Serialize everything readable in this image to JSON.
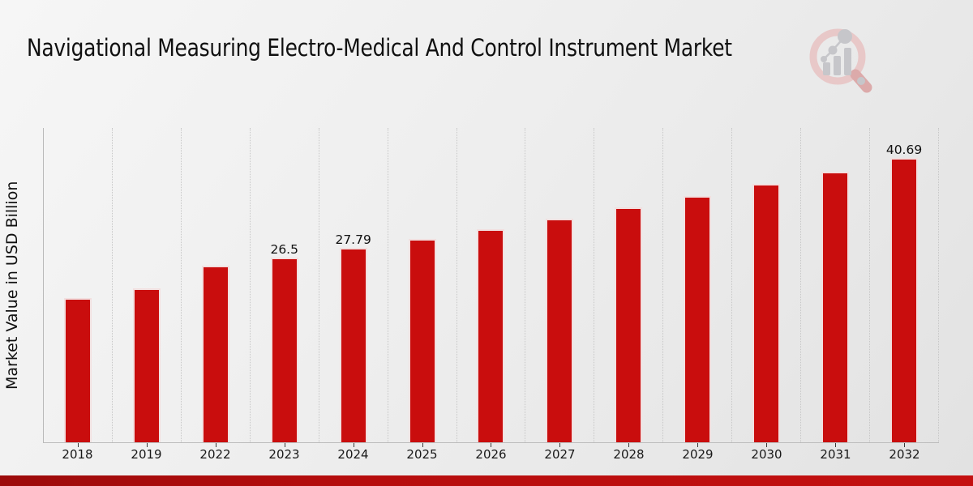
{
  "title": "Navigational Measuring Electro-Medical And Control Instrument Market",
  "ylabel": "Market Value in USD Billion",
  "colors": {
    "bar": "#C90D0D",
    "bar_edge": "#F6F6F6",
    "band_left": "#9C0B0B",
    "band_right": "#C41010",
    "gridline": "#C7C7C7",
    "axis": "#BDBDBD",
    "text": "#111111",
    "logo_pink": "#E8C8C8",
    "logo_handle_pink": "#DCAAAA",
    "logo_gray": "#C6C6CA"
  },
  "logo": {
    "name": "magnifier-bar-chart-logo"
  },
  "chart_data": {
    "type": "bar",
    "title": "Navigational Measuring Electro-Medical And Control Instrument Market",
    "xlabel": "",
    "ylabel": "Market Value in USD Billion",
    "categories": [
      "2018",
      "2019",
      "2022",
      "2023",
      "2024",
      "2025",
      "2026",
      "2027",
      "2028",
      "2029",
      "2030",
      "2031",
      "2032"
    ],
    "values": [
      20.6,
      22.0,
      25.3,
      26.5,
      27.79,
      29.14,
      30.56,
      32.05,
      33.61,
      35.25,
      36.96,
      38.77,
      40.69
    ],
    "labels": [
      "",
      "",
      "",
      "26.5",
      "27.79",
      "",
      "",
      "",
      "",
      "",
      "",
      "",
      "40.69"
    ],
    "ylim": [
      0,
      45
    ],
    "bar_color": "#C90D0D",
    "grid": "vertical-dotted",
    "legend": "none"
  }
}
